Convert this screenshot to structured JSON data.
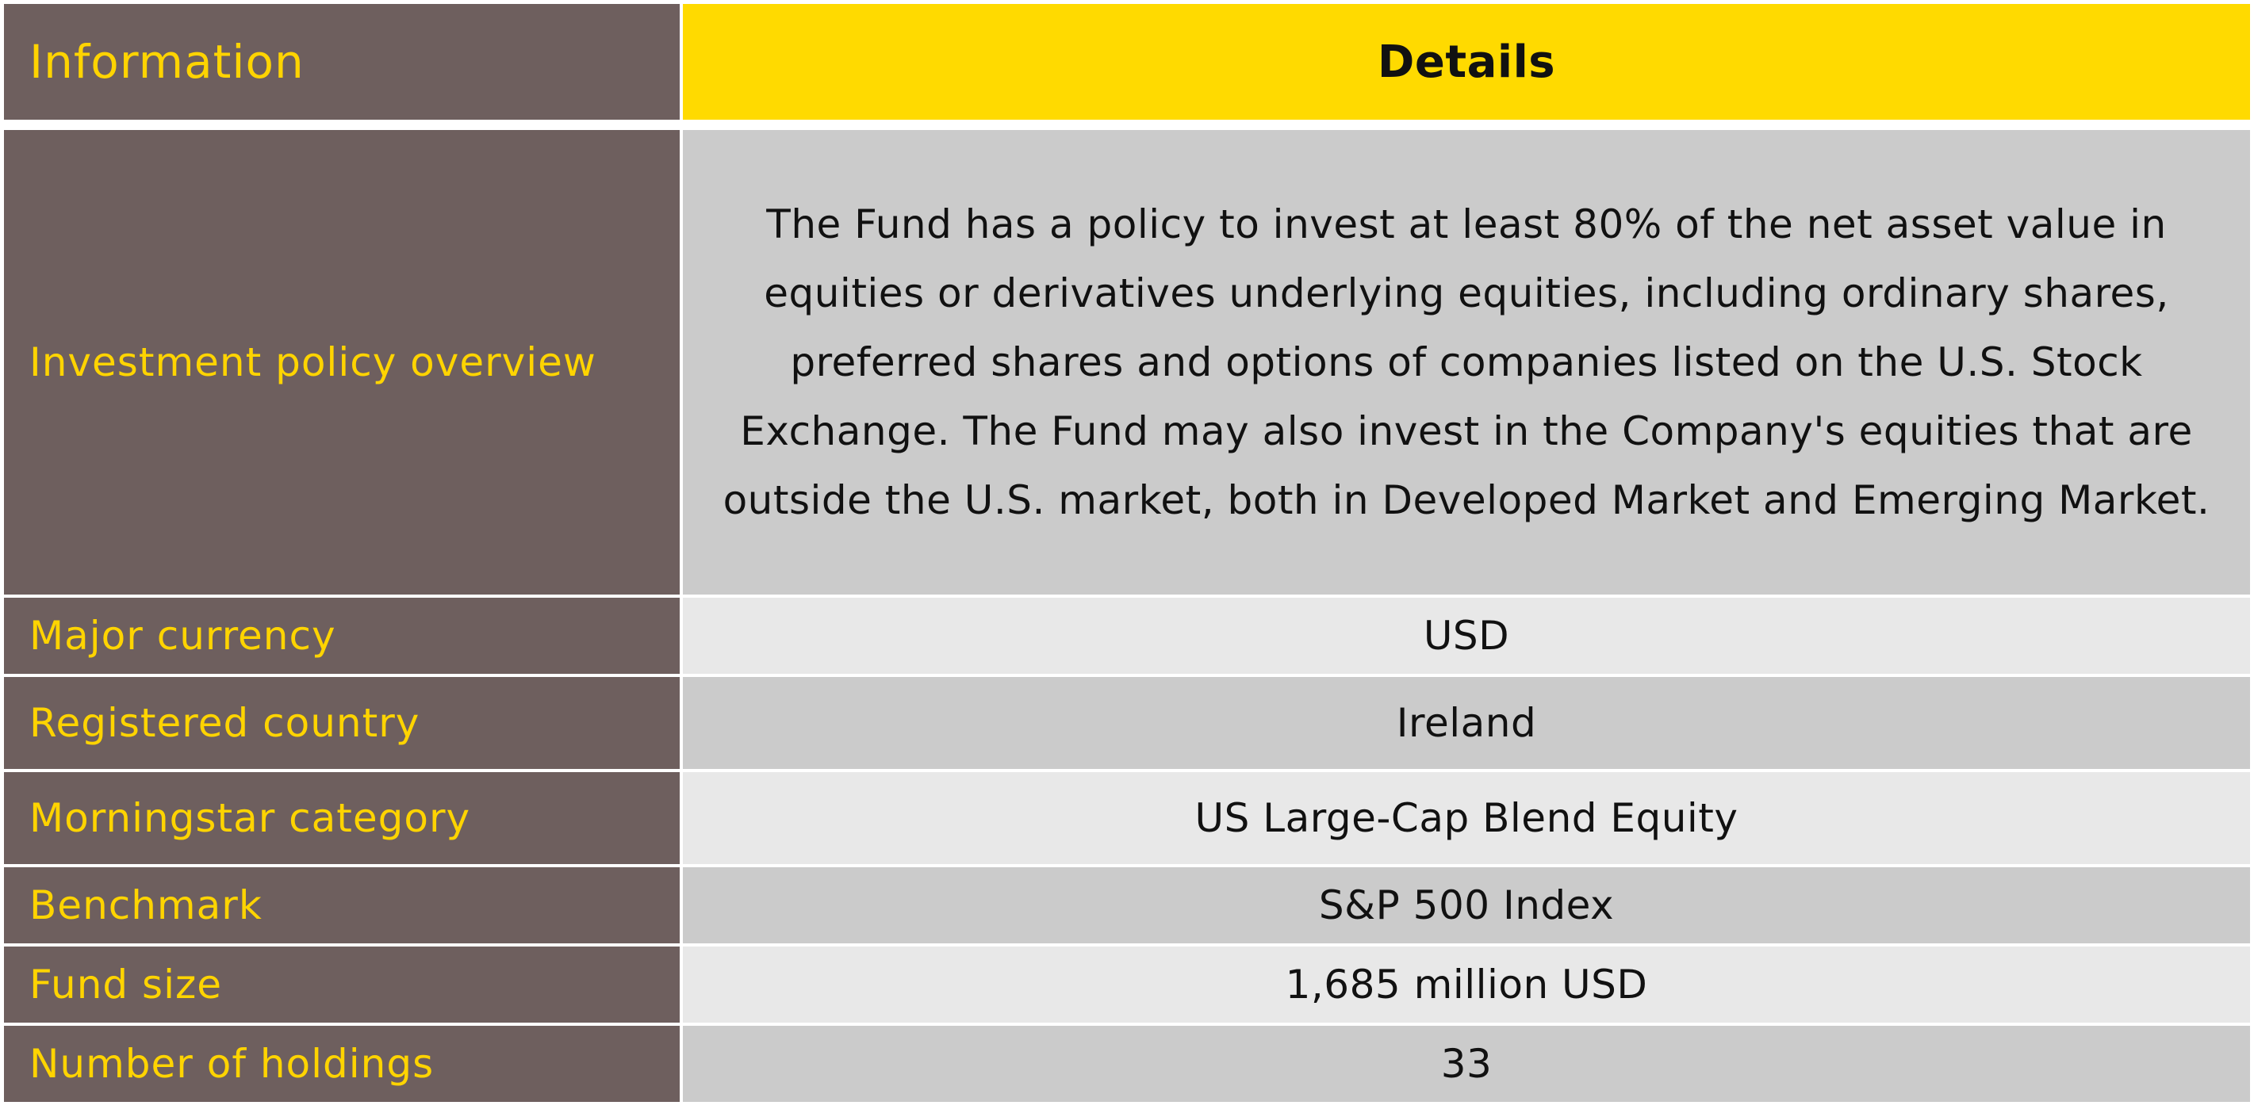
{
  "header": {
    "information": "Information",
    "details": "Details"
  },
  "rows": [
    {
      "label": "Investment policy overview",
      "value": "The Fund has a policy to invest at least 80% of the net asset value in equities or derivatives underlying equities, including ordinary shares, preferred shares and options of companies listed on the U.S. Stock Exchange. The Fund may also invest in the Company's equities that are outside the U.S. market, both in Developed Market and Emerging Market."
    },
    {
      "label": "Major currency",
      "value": "USD"
    },
    {
      "label": "Registered country",
      "value": "Ireland"
    },
    {
      "label": "Morningstar category",
      "value": "US Large-Cap Blend Equity"
    },
    {
      "label": "Benchmark",
      "value": "S&P 500 Index"
    },
    {
      "label": "Fund size",
      "value": "1,685 million USD"
    },
    {
      "label": "Number of holdings",
      "value": "33"
    }
  ],
  "colors": {
    "label_bg": "#6e5f5e",
    "label_text": "#ffd400",
    "header_bg": "#ffda00",
    "row_dark": "#cbcbcb",
    "row_light": "#e8e8e8"
  }
}
